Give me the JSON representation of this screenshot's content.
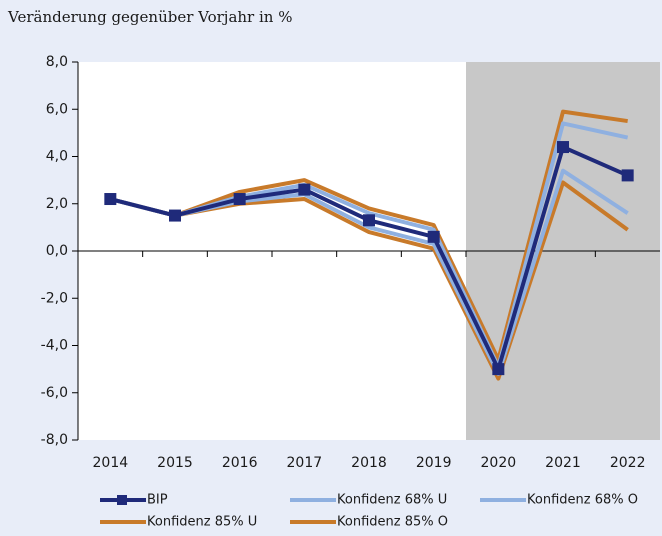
{
  "chart_data": {
    "type": "line",
    "title": "Veränderung gegenüber Vorjahr in %",
    "categories": [
      "2014",
      "2015",
      "2016",
      "2017",
      "2018",
      "2019",
      "2020",
      "2021",
      "2022"
    ],
    "series": [
      {
        "name": "BIP",
        "color": "#1f2a7a",
        "values": [
          2.2,
          1.5,
          2.2,
          2.6,
          1.3,
          0.6,
          -5.0,
          4.4,
          3.2
        ],
        "marker": "square"
      },
      {
        "name": "Konfidenz 68% U",
        "color": "#8fb0e0",
        "values": [
          2.2,
          1.5,
          2.1,
          2.4,
          1.0,
          0.3,
          -5.2,
          3.4,
          1.6
        ]
      },
      {
        "name": "Konfidenz 68% O",
        "color": "#8fb0e0",
        "values": [
          2.2,
          1.5,
          2.3,
          2.8,
          1.6,
          0.9,
          -4.9,
          5.4,
          4.8
        ]
      },
      {
        "name": "Konfidenz 85% U",
        "color": "#c87a2a",
        "values": [
          2.2,
          1.5,
          2.0,
          2.2,
          0.8,
          0.1,
          -5.4,
          2.9,
          0.9
        ]
      },
      {
        "name": "Konfidenz 85% O",
        "color": "#c87a2a",
        "values": [
          2.2,
          1.5,
          2.5,
          3.0,
          1.8,
          1.1,
          -4.6,
          5.9,
          5.5
        ]
      }
    ],
    "ylim": [
      -8,
      8
    ],
    "yticks": [
      {
        "value": -8,
        "label": "-8,0"
      },
      {
        "value": -6,
        "label": "-6,0"
      },
      {
        "value": -4,
        "label": "-4,0"
      },
      {
        "value": -2,
        "label": "-2,0"
      },
      {
        "value": 0,
        "label": "0,0"
      },
      {
        "value": 2,
        "label": "2,0"
      },
      {
        "value": 4,
        "label": "4,0"
      },
      {
        "value": 6,
        "label": "6,0"
      },
      {
        "value": 8,
        "label": "8,0"
      }
    ],
    "shade_from_index": 6,
    "shade_color": "#c8c8c8",
    "plot_background": "#ffffff"
  }
}
